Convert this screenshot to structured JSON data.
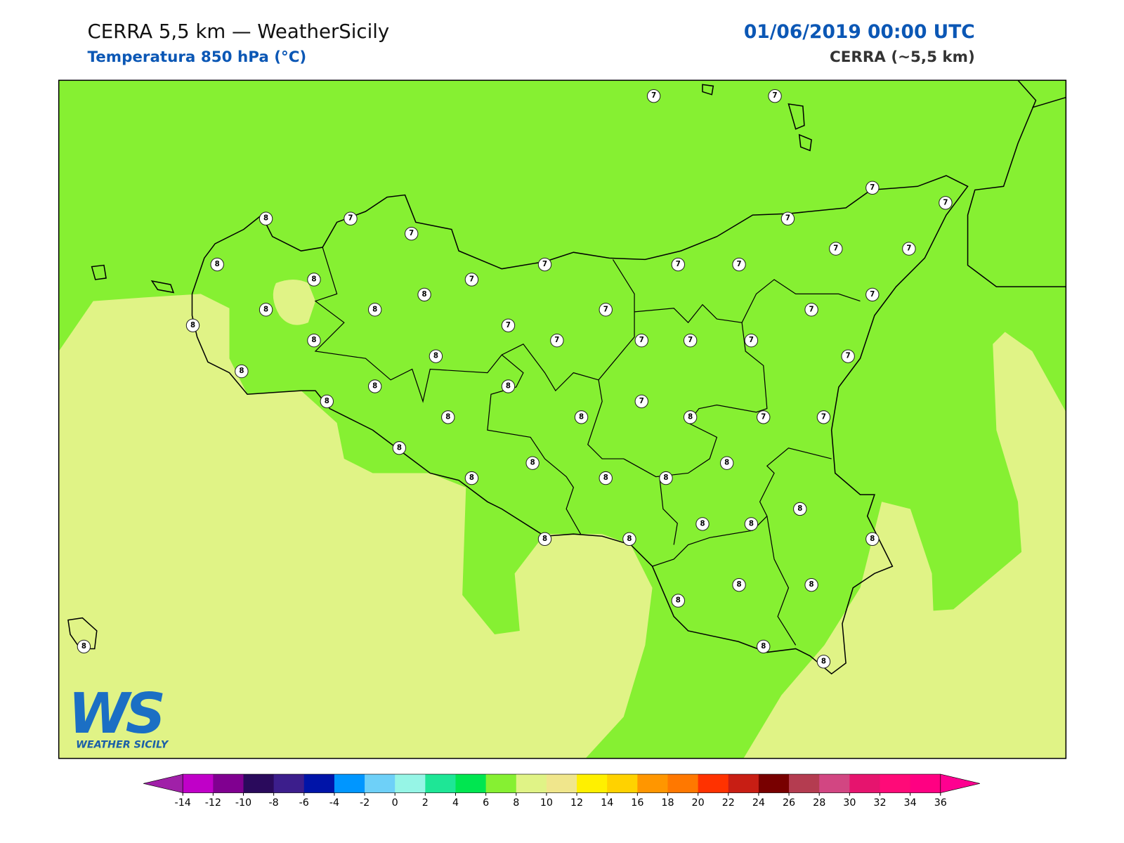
{
  "header": {
    "title": "CERRA 5,5 km — WeatherSicily",
    "subtitle": "Temperatura 850 hPa (°C)",
    "date": "01/06/2019 00:00 UTC",
    "model": "CERRA (~5,5 km)"
  },
  "map": {
    "land_color": "#86f032",
    "warm_color": "#e0f386",
    "stations": [
      7,
      7,
      7,
      7,
      8,
      7,
      7,
      7,
      8,
      7,
      7,
      7,
      7,
      7,
      8,
      7,
      8,
      7,
      8,
      8,
      7,
      7,
      8,
      7,
      8,
      7,
      7,
      7,
      7,
      8,
      7,
      8,
      8,
      8,
      8,
      7,
      8,
      8,
      8,
      7,
      7,
      8,
      8,
      8,
      8,
      8,
      8,
      8,
      8,
      8,
      8,
      8,
      8,
      8,
      8,
      8,
      8,
      8,
      8
    ]
  },
  "logo": {
    "mark": "WS",
    "name": "WEATHER SICILY"
  },
  "colorbar": {
    "ticks": [
      -14,
      -12,
      -10,
      -8,
      -6,
      -4,
      -2,
      0,
      2,
      4,
      6,
      8,
      10,
      12,
      14,
      16,
      18,
      20,
      22,
      24,
      26,
      28,
      30,
      32,
      34,
      36
    ],
    "colors": [
      "#a020a8",
      "#c000c8",
      "#800090",
      "#2a0a5c",
      "#3c1e8c",
      "#0014a8",
      "#0096ff",
      "#6ed0f8",
      "#96f5e6",
      "#1ee696",
      "#00e650",
      "#86f032",
      "#e0f386",
      "#f0e68c",
      "#fff000",
      "#ffd200",
      "#ff9600",
      "#ff7800",
      "#ff3200",
      "#c81e14",
      "#780000",
      "#b43c50",
      "#d24682",
      "#e6146e",
      "#ff0a78",
      "#ff0082",
      "#ff0090"
    ],
    "extend": "both"
  }
}
